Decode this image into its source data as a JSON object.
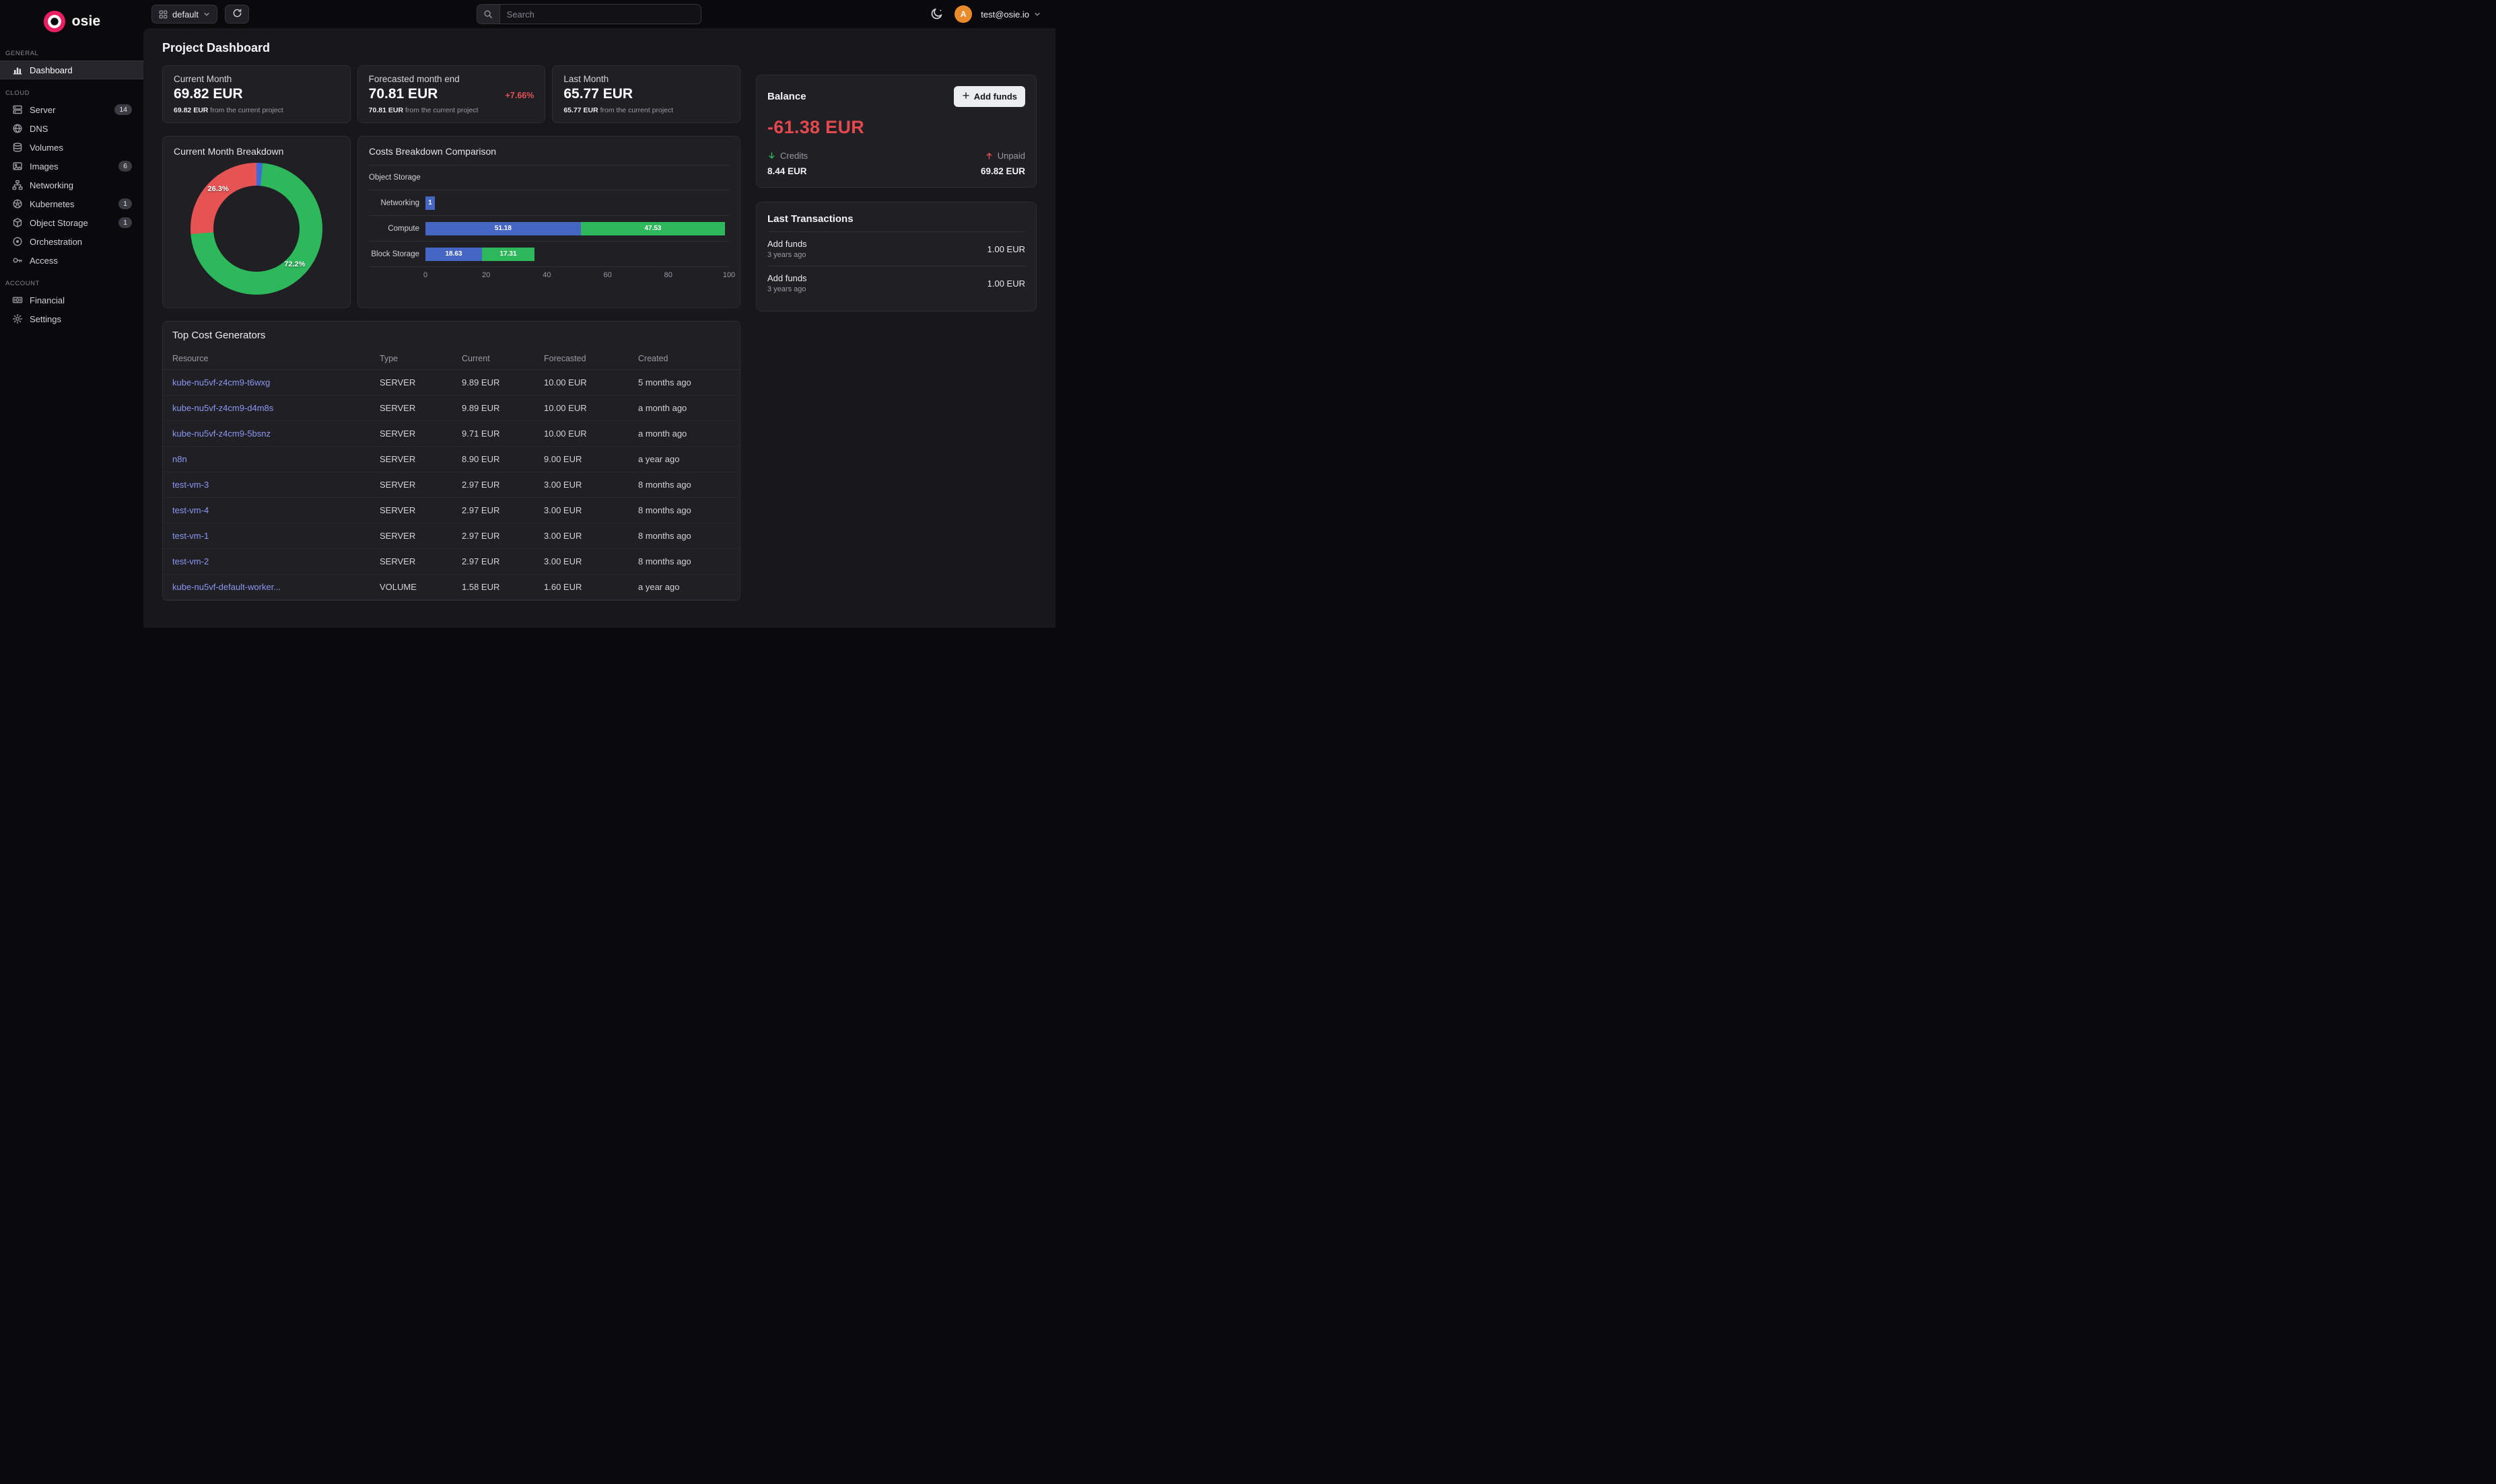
{
  "app": {
    "name": "osie"
  },
  "topbar": {
    "project_selector": "default",
    "search_placeholder": "Search",
    "user_email": "test@osie.io",
    "avatar_letter": "A"
  },
  "page": {
    "title": "Project Dashboard"
  },
  "sidebar": {
    "sections": [
      {
        "label": "GENERAL",
        "items": [
          {
            "label": "Dashboard",
            "icon": "dashboard-icon",
            "active": true
          }
        ]
      },
      {
        "label": "CLOUD",
        "items": [
          {
            "label": "Server",
            "icon": "server-icon",
            "badge": "14"
          },
          {
            "label": "DNS",
            "icon": "dns-globe-icon"
          },
          {
            "label": "Volumes",
            "icon": "volumes-icon"
          },
          {
            "label": "Images",
            "icon": "images-icon",
            "badge": "6"
          },
          {
            "label": "Networking",
            "icon": "networking-icon"
          },
          {
            "label": "Kubernetes",
            "icon": "kubernetes-icon",
            "badge": "1"
          },
          {
            "label": "Object Storage",
            "icon": "object-storage-icon",
            "badge": "1"
          },
          {
            "label": "Orchestration",
            "icon": "orchestration-icon"
          },
          {
            "label": "Access",
            "icon": "access-icon"
          }
        ]
      },
      {
        "label": "ACCOUNT",
        "items": [
          {
            "label": "Financial",
            "icon": "financial-icon"
          },
          {
            "label": "Settings",
            "icon": "settings-icon"
          }
        ]
      }
    ]
  },
  "stats": [
    {
      "title": "Current Month",
      "value": "69.82 EUR",
      "delta": "",
      "footnote_value": "69.82 EUR",
      "footnote_text": "from the current project"
    },
    {
      "title": "Forecasted month end",
      "value": "70.81 EUR",
      "delta": "+7.66%",
      "footnote_value": "70.81 EUR",
      "footnote_text": "from the current project"
    },
    {
      "title": "Last Month",
      "value": "65.77 EUR",
      "delta": "",
      "footnote_value": "65.77 EUR",
      "footnote_text": "from the current project"
    }
  ],
  "balance": {
    "title": "Balance",
    "add_funds_label": "Add funds",
    "amount": "-61.38 EUR",
    "credits_label": "Credits",
    "credits_value": "8.44 EUR",
    "unpaid_label": "Unpaid",
    "unpaid_value": "69.82 EUR"
  },
  "transactions": {
    "title": "Last Transactions",
    "items": [
      {
        "label": "Add funds",
        "time": "3 years ago",
        "amount": "1.00 EUR"
      },
      {
        "label": "Add funds",
        "time": "3 years ago",
        "amount": "1.00 EUR"
      }
    ]
  },
  "chart_data": [
    {
      "type": "pie",
      "variant": "donut",
      "title": "Current Month Breakdown",
      "slices": [
        {
          "label": "",
          "value": 1.5,
          "color": "#3d6bdd"
        },
        {
          "label": "72.2%",
          "value": 72.2,
          "color": "#2eb85c"
        },
        {
          "label": "26.3%",
          "value": 26.3,
          "color": "#e55353"
        }
      ]
    },
    {
      "type": "bar",
      "orientation": "horizontal",
      "title": "Costs Breakdown Comparison",
      "categories": [
        "Object Storage",
        "Networking",
        "Compute",
        "Block Storage"
      ],
      "series": [
        {
          "name": "Current",
          "color": "#4666c4",
          "values": [
            0,
            1,
            51.18,
            18.63
          ],
          "labels": [
            "",
            "1",
            "51.18",
            "18.63"
          ]
        },
        {
          "name": "Forecasted",
          "color": "#2eb85c",
          "values": [
            0,
            0,
            47.53,
            17.31
          ],
          "labels": [
            "",
            "",
            "47.53",
            "17.31"
          ]
        }
      ],
      "xlim": [
        0,
        100
      ],
      "ticks": [
        "0",
        "20",
        "40",
        "60",
        "80",
        "100"
      ],
      "grid": true,
      "legend": "none"
    }
  ],
  "table": {
    "title": "Top Cost Generators",
    "columns": [
      "Resource",
      "Type",
      "Current",
      "Forecasted",
      "Created"
    ],
    "rows": [
      {
        "resource": "kube-nu5vf-z4cm9-t6wxg",
        "type": "SERVER",
        "current": "9.89 EUR",
        "forecasted": "10.00 EUR",
        "created": "5 months ago"
      },
      {
        "resource": "kube-nu5vf-z4cm9-d4m8s",
        "type": "SERVER",
        "current": "9.89 EUR",
        "forecasted": "10.00 EUR",
        "created": "a month ago"
      },
      {
        "resource": "kube-nu5vf-z4cm9-5bsnz",
        "type": "SERVER",
        "current": "9.71 EUR",
        "forecasted": "10.00 EUR",
        "created": "a month ago"
      },
      {
        "resource": "n8n",
        "type": "SERVER",
        "current": "8.90 EUR",
        "forecasted": "9.00 EUR",
        "created": "a year ago"
      },
      {
        "resource": "test-vm-3",
        "type": "SERVER",
        "current": "2.97 EUR",
        "forecasted": "3.00 EUR",
        "created": "8 months ago"
      },
      {
        "resource": "test-vm-4",
        "type": "SERVER",
        "current": "2.97 EUR",
        "forecasted": "3.00 EUR",
        "created": "8 months ago"
      },
      {
        "resource": "test-vm-1",
        "type": "SERVER",
        "current": "2.97 EUR",
        "forecasted": "3.00 EUR",
        "created": "8 months ago"
      },
      {
        "resource": "test-vm-2",
        "type": "SERVER",
        "current": "2.97 EUR",
        "forecasted": "3.00 EUR",
        "created": "8 months ago"
      },
      {
        "resource": "kube-nu5vf-default-worker...",
        "type": "VOLUME",
        "current": "1.58 EUR",
        "forecasted": "1.60 EUR",
        "created": "a year ago"
      }
    ]
  },
  "colors": {
    "brand_pink": "#e91e63",
    "accent_red": "#e5484d",
    "success_green": "#2eb85c",
    "link_blue": "#8d97f2",
    "bar_blue": "#4666c4",
    "avatar_orange": "#e98a2b"
  }
}
